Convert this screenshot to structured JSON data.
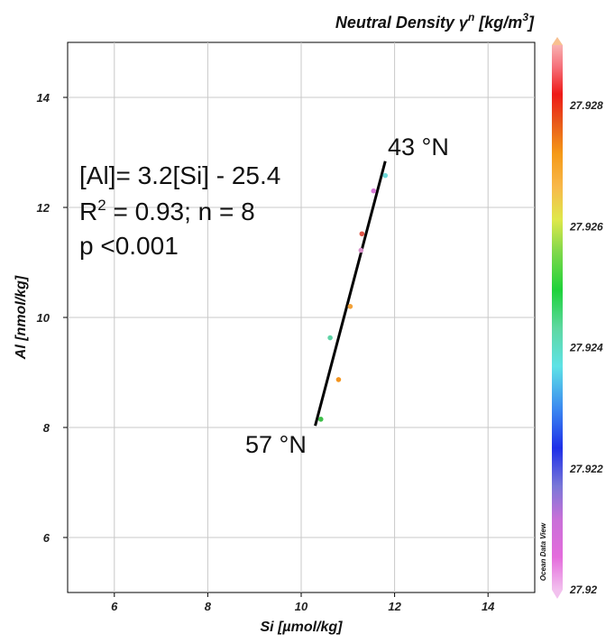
{
  "chart_data": {
    "type": "scatter",
    "xlabel": "Si [µmol/kg]",
    "ylabel": "Al [nmol/kg]",
    "xlim": [
      5,
      15
    ],
    "ylim": [
      5,
      15
    ],
    "x_ticks": [
      "6",
      "8",
      "10",
      "12",
      "14"
    ],
    "y_ticks": [
      "6",
      "8",
      "10",
      "12",
      "14"
    ],
    "grid": true,
    "colorbar": {
      "title_main": "Neutral Density γ",
      "title_sup": "n",
      "title_unit": " [kg/m",
      "title_unit_sup": "3",
      "title_close": "]",
      "range": [
        27.92,
        27.929
      ],
      "ticks": [
        "27.92",
        "27.922",
        "27.924",
        "27.926",
        "27.928"
      ],
      "side_label": "Ocean Data View"
    },
    "points": [
      {
        "x": 10.42,
        "y": 8.15,
        "density": 27.9237,
        "color": "#3fbf4a"
      },
      {
        "x": 10.8,
        "y": 8.87,
        "density": 27.9263,
        "color": "#f3941e"
      },
      {
        "x": 10.62,
        "y": 9.63,
        "density": 27.9225,
        "color": "#5fd3a6"
      },
      {
        "x": 11.05,
        "y": 10.2,
        "density": 27.9264,
        "color": "#f2a23a"
      },
      {
        "x": 11.28,
        "y": 11.22,
        "density": 27.9205,
        "color": "#d68ec8"
      },
      {
        "x": 11.3,
        "y": 11.52,
        "density": 27.9272,
        "color": "#e0584a"
      },
      {
        "x": 11.55,
        "y": 12.3,
        "density": 27.9205,
        "color": "#d77ad6"
      },
      {
        "x": 11.8,
        "y": 12.58,
        "density": 27.9222,
        "color": "#6fd8d8"
      }
    ],
    "fit_line": {
      "x": [
        10.3,
        11.8
      ],
      "y": [
        8.03,
        12.84
      ]
    },
    "annotations": {
      "equation": "[Al]= 3.2[Si] - 25.4",
      "r2_prefix": "R",
      "r2_sup": "2",
      "r2_rest": " = 0.93; n = 8",
      "pvalue": "p <0.001",
      "north_label": "43 °N",
      "south_label": "57 °N"
    }
  }
}
